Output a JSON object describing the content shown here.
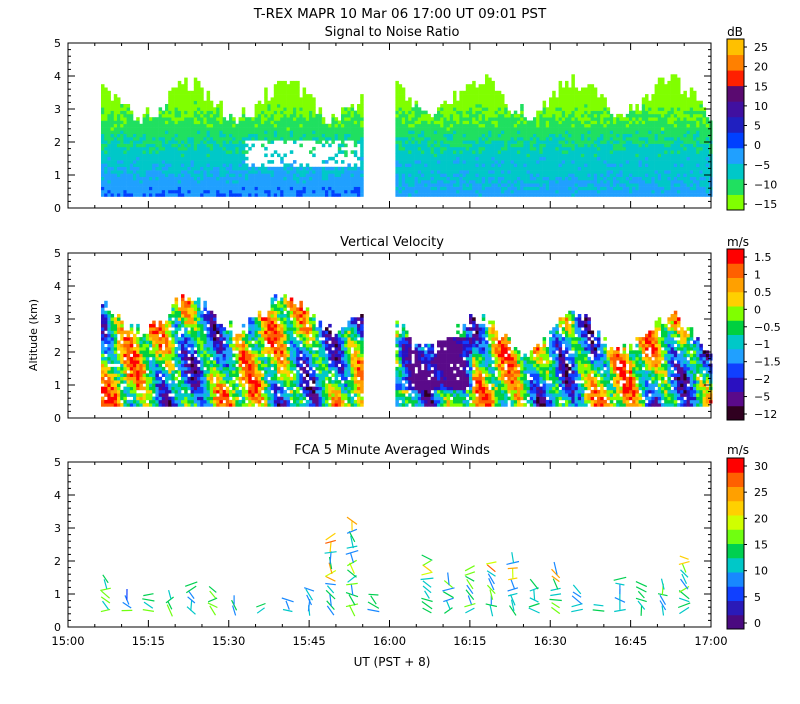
{
  "figure": {
    "title": "T-REX  MAPR 10 Mar 06  17:00 UT  09:01  PST",
    "xlabel": "UT  (PST + 8)",
    "ylabel": "Altitude (km)"
  },
  "colors": {
    "snr": [
      "#80ff00",
      "#20e060",
      "#00c8c8",
      "#20a0ff",
      "#0040ff",
      "#2020c0",
      "#4010a0",
      "#5a0a70",
      "#ff2000",
      "#ff8000",
      "#ffc000"
    ],
    "velocity": [
      "#300020",
      "#5a0a8a",
      "#2a10c0",
      "#1040ff",
      "#20a0ff",
      "#00c8c8",
      "#00d040",
      "#80ff00",
      "#ffd000",
      "#ffa000",
      "#ff6000",
      "#ff0000"
    ],
    "winds": [
      "#4a0a80",
      "#2a1ab8",
      "#1040ff",
      "#1888ff",
      "#00c8c8",
      "#00d050",
      "#70ff10",
      "#d0ff00",
      "#ffd000",
      "#ffa000",
      "#ff6000",
      "#ff0000"
    ]
  },
  "chart_data": [
    {
      "type": "heatmap",
      "title": "Signal to Noise Ratio",
      "ylabel": "Altitude (km)",
      "xlabel": "UT  (PST + 8)",
      "x_ticks": [
        "15:00",
        "15:15",
        "15:30",
        "15:45",
        "16:00",
        "16:15",
        "16:30",
        "16:45",
        "17:00"
      ],
      "x_range_min": [
        0,
        120
      ],
      "ylim": [
        0,
        5
      ],
      "y_ticks": [
        "0",
        "1",
        "2",
        "3",
        "4",
        "5"
      ],
      "data_gap_min": [
        55,
        61
      ],
      "data_altitude_range_km": [
        0.3,
        3.8
      ],
      "colorbar": {
        "unit": "dB",
        "tick_labels": [
          "25",
          "20",
          "15",
          "10",
          "5",
          "0",
          "−5",
          "−10",
          "−15"
        ],
        "range": [
          -17,
          28
        ]
      }
    },
    {
      "type": "heatmap",
      "title": "Vertical Velocity",
      "ylabel": "Altitude (km)",
      "xlabel": "UT  (PST + 8)",
      "x_ticks": [
        "15:00",
        "15:15",
        "15:30",
        "15:45",
        "16:00",
        "16:15",
        "16:30",
        "16:45",
        "17:00"
      ],
      "x_range_min": [
        0,
        120
      ],
      "ylim": [
        0,
        5
      ],
      "y_ticks": [
        "0",
        "1",
        "2",
        "3",
        "4",
        "5"
      ],
      "data_gap_min": [
        55,
        61
      ],
      "colorbar": {
        "unit": "m/s",
        "tick_labels": [
          "1.5",
          "1",
          "0.5",
          "0",
          "−0.5",
          "−1",
          "−1.5",
          "−2",
          "−5",
          "−12"
        ]
      }
    },
    {
      "type": "scatter",
      "title": "FCA 5 Minute Averaged Winds",
      "ylabel": "Altitude (km)",
      "xlabel": "UT  (PST + 8)",
      "x_ticks": [
        "15:00",
        "15:15",
        "15:30",
        "15:45",
        "16:00",
        "16:15",
        "16:30",
        "16:45",
        "17:00"
      ],
      "x_range_min": [
        0,
        120
      ],
      "ylim": [
        0,
        5
      ],
      "y_ticks": [
        "0",
        "1",
        "2",
        "3",
        "4",
        "5"
      ],
      "colorbar": {
        "unit": "m/s",
        "tick_labels": [
          "30",
          "25",
          "20",
          "15",
          "10",
          "5",
          "0"
        ],
        "range": [
          0,
          30
        ]
      },
      "profiles_time_min": [
        7,
        11,
        15,
        19,
        23,
        27,
        31,
        36,
        41,
        45,
        49,
        53,
        57,
        67,
        71,
        75,
        79,
        83,
        87,
        91,
        95,
        99,
        103,
        107,
        111,
        115
      ],
      "profile_top_km": [
        1.5,
        1.1,
        1.1,
        1.0,
        1.4,
        1.2,
        0.9,
        0.8,
        0.9,
        1.2,
        2.9,
        3.3,
        1.0,
        2.1,
        1.6,
        1.9,
        2.0,
        2.2,
        1.4,
        1.8,
        1.2,
        0.8,
        1.5,
        1.4,
        1.4,
        2.2
      ]
    }
  ]
}
